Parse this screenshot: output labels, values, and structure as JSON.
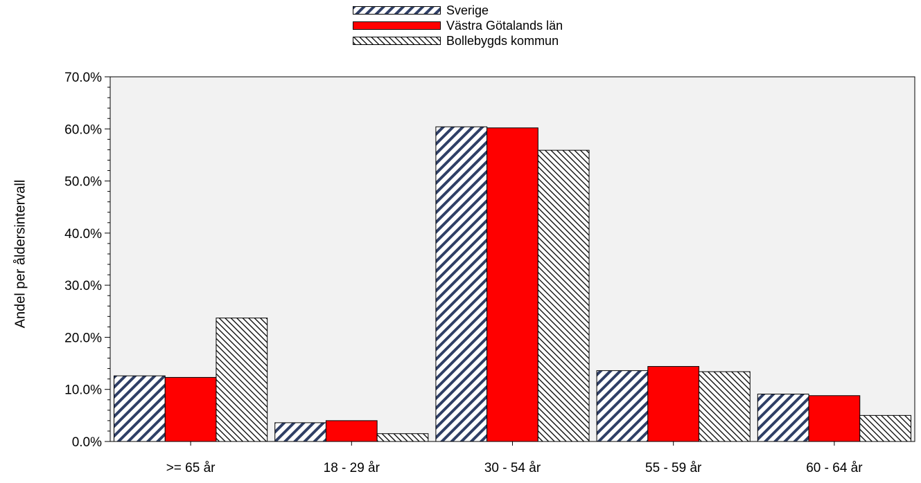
{
  "chart_data": {
    "type": "bar",
    "ylabel": "Andel per åldersintervall",
    "xlabel": "",
    "ylim": [
      0,
      70
    ],
    "yticks": [
      "0.0%",
      "10.0%",
      "20.0%",
      "30.0%",
      "40.0%",
      "50.0%",
      "60.0%",
      "70.0%"
    ],
    "categories": [
      ">= 65 år",
      "18 - 29 år",
      "30 - 54 år",
      "55 - 59 år",
      "60 - 64 år"
    ],
    "series": [
      {
        "name": "Sverige",
        "values": [
          12.6,
          3.6,
          60.4,
          13.6,
          9.1
        ]
      },
      {
        "name": "Västra Götalands län",
        "values": [
          12.3,
          4.0,
          60.2,
          14.4,
          8.8
        ]
      },
      {
        "name": "Bollebygds kommun",
        "values": [
          23.7,
          1.5,
          55.9,
          13.4,
          5.0
        ]
      }
    ],
    "grid": false,
    "legend_position": "top-center",
    "colors": {
      "sverige_stripe": "#2f3f66",
      "sverige_fill": "#ffffff",
      "vgl": "#ff0000",
      "bollebygd_stripe": "#000000",
      "plot_background": "#f2f2f2"
    }
  }
}
